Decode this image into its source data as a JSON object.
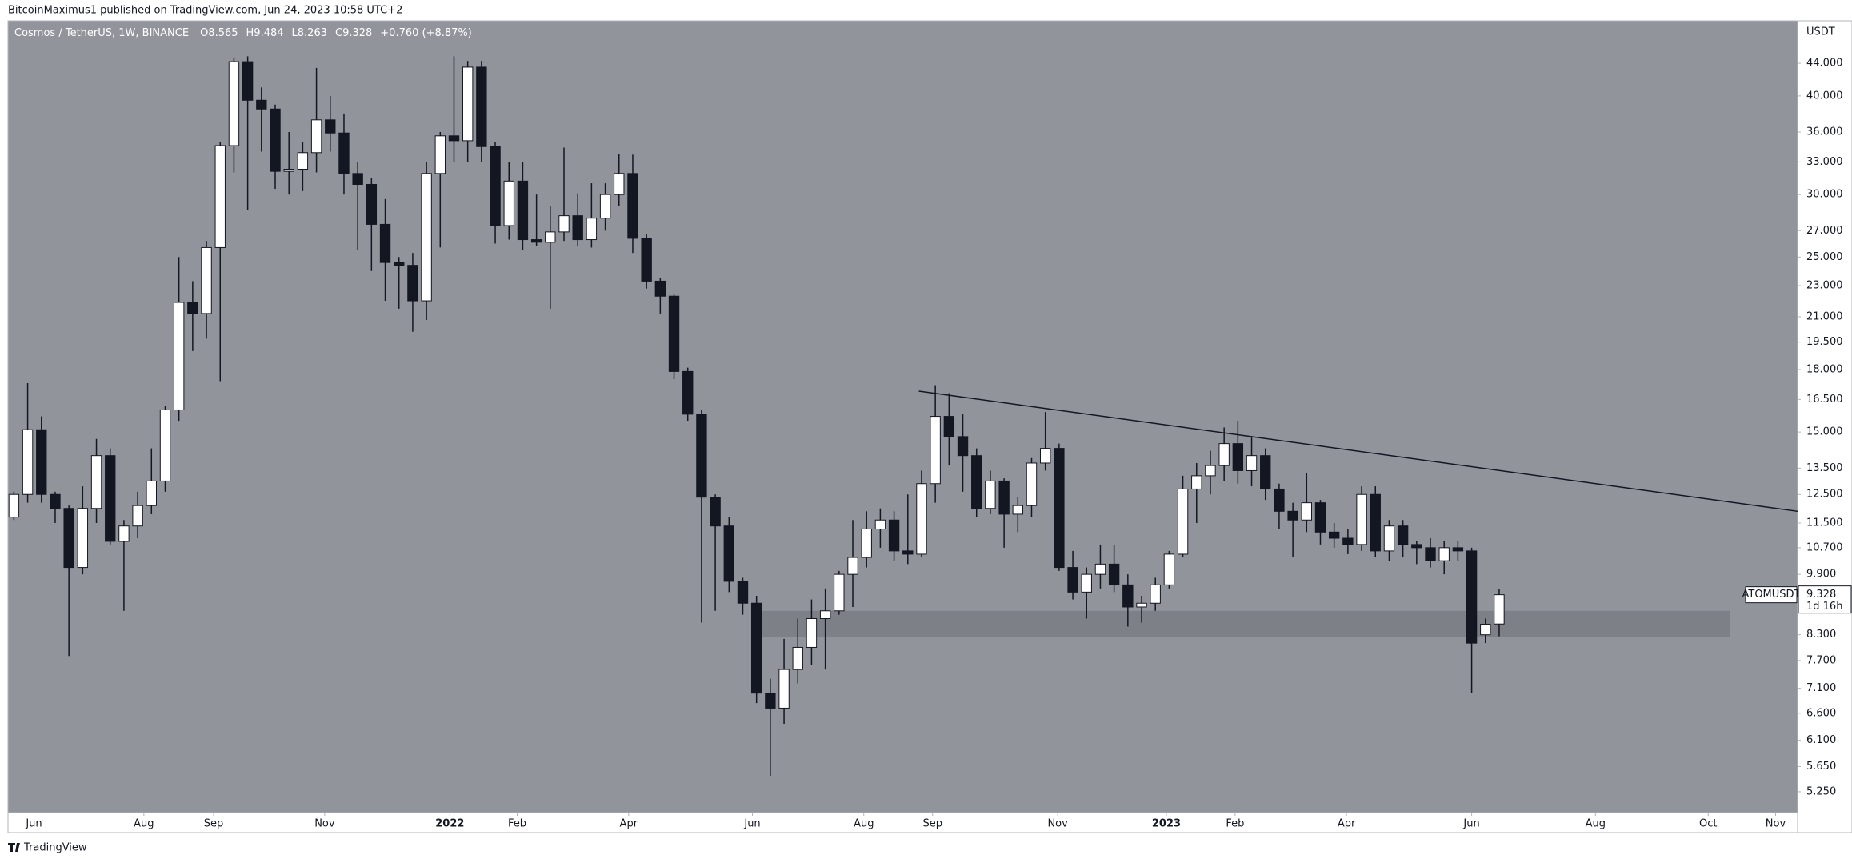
{
  "header": "BitcoinMaximus1 published on TradingView.com, Jun 24, 2023 10:58 UTC+2",
  "footer": "TradingView",
  "chart_data": {
    "type": "candlestick",
    "symbol_legend": "Cosmos / TetherUS, 1W, BINANCE",
    "legend_labels": [
      "O",
      "H",
      "L",
      "C"
    ],
    "change_label": "+0.760 (+8.87%)",
    "currency": "USDT",
    "symbol_tag": "ATOMUSDT",
    "countdown": "1d 16h",
    "log_scale": true,
    "grid": false,
    "up_color": "#ffffff",
    "down_color": "#131722",
    "background": "#92949c",
    "open": [
      11.7,
      12.5,
      15.1,
      12.5,
      12.0,
      10.1,
      12.0,
      14.0,
      10.9,
      11.4,
      12.1,
      13.0,
      16.0,
      21.9,
      21.2,
      25.7,
      34.6,
      44.2,
      39.5,
      38.5,
      32.1,
      32.3,
      33.9,
      37.3,
      35.9,
      31.9,
      30.9,
      27.5,
      24.6,
      24.4,
      22.0,
      31.9,
      35.6,
      35.1,
      43.5,
      34.5,
      27.4,
      31.2,
      26.3,
      26.1,
      26.9,
      28.2,
      26.3,
      28.0,
      30.0,
      31.9,
      26.4,
      23.3,
      22.3,
      17.9,
      15.8,
      12.4,
      11.4,
      9.7,
      9.1,
      7.0,
      6.7,
      7.5,
      8.0,
      8.7,
      8.9,
      9.9,
      10.4,
      11.3,
      11.6,
      10.6,
      10.5,
      12.9,
      15.7,
      14.8,
      14.0,
      12.0,
      13.0,
      11.8,
      12.1,
      13.7,
      14.3,
      10.1,
      9.4,
      9.9,
      10.2,
      9.6,
      9.0,
      9.1,
      9.6,
      10.5,
      12.7,
      13.2,
      13.6,
      14.5,
      13.4,
      14.0,
      12.7,
      11.9,
      11.6,
      12.2,
      11.2,
      11.0,
      10.8,
      12.5,
      10.6,
      11.4,
      10.8,
      10.7,
      10.3,
      10.7,
      10.6,
      8.3,
      8.565
    ],
    "high": [
      12.6,
      17.3,
      15.7,
      12.6,
      12.1,
      12.8,
      14.7,
      14.3,
      11.6,
      12.6,
      14.3,
      16.2,
      25.0,
      23.3,
      26.2,
      35.0,
      44.7,
      44.9,
      41.0,
      39.0,
      36.0,
      35.0,
      43.4,
      40.0,
      38.0,
      33.0,
      31.5,
      29.6,
      25.0,
      25.3,
      33.0,
      36.0,
      44.9,
      44.3,
      44.3,
      35.0,
      33.0,
      33.0,
      30.0,
      29.0,
      34.4,
      30.1,
      31.0,
      31.0,
      33.8,
      33.7,
      26.7,
      23.5,
      22.4,
      18.1,
      16.0,
      12.5,
      11.7,
      9.8,
      9.3,
      7.3,
      8.2,
      8.7,
      9.2,
      9.5,
      10.0,
      11.6,
      11.9,
      12.0,
      11.9,
      12.5,
      13.4,
      17.2,
      16.8,
      15.8,
      14.3,
      13.4,
      13.1,
      12.4,
      13.9,
      15.9,
      14.5,
      10.6,
      10.1,
      10.8,
      10.8,
      9.9,
      9.3,
      9.8,
      10.6,
      13.2,
      13.7,
      14.2,
      15.2,
      15.5,
      14.8,
      14.3,
      12.9,
      12.2,
      13.3,
      12.3,
      11.5,
      11.3,
      12.8,
      12.8,
      11.6,
      11.6,
      10.9,
      11.0,
      10.9,
      10.9,
      10.7,
      8.7,
      9.484
    ],
    "low": [
      11.6,
      12.2,
      12.2,
      11.5,
      7.8,
      9.9,
      11.5,
      10.8,
      8.9,
      11.0,
      11.8,
      12.6,
      15.5,
      19.0,
      19.7,
      17.4,
      32.0,
      28.7,
      34.0,
      30.5,
      30.0,
      30.3,
      32.0,
      34.0,
      30.0,
      25.5,
      24.0,
      22.0,
      21.5,
      20.1,
      20.8,
      25.7,
      33.0,
      33.0,
      33.0,
      26.0,
      26.3,
      25.5,
      25.8,
      21.5,
      26.2,
      25.8,
      25.7,
      27.0,
      29.0,
      25.3,
      22.8,
      21.2,
      17.5,
      15.5,
      8.6,
      8.9,
      9.4,
      8.8,
      6.8,
      5.5,
      6.4,
      7.2,
      7.6,
      7.5,
      8.8,
      9.0,
      10.1,
      10.7,
      10.3,
      10.2,
      10.4,
      12.2,
      13.6,
      12.6,
      11.7,
      11.8,
      10.7,
      11.2,
      11.7,
      13.4,
      10.0,
      9.2,
      8.7,
      9.5,
      9.4,
      8.5,
      8.6,
      8.9,
      9.5,
      10.4,
      11.5,
      12.5,
      13.0,
      12.9,
      12.8,
      12.3,
      11.3,
      10.4,
      11.2,
      10.8,
      10.7,
      10.5,
      10.6,
      10.4,
      10.3,
      10.4,
      10.2,
      10.1,
      9.9,
      10.3,
      7.0,
      8.1,
      8.263
    ],
    "close": [
      12.5,
      15.1,
      12.5,
      12.0,
      10.1,
      12.0,
      14.0,
      10.9,
      11.4,
      12.1,
      13.0,
      16.0,
      21.9,
      21.2,
      25.7,
      34.6,
      44.2,
      39.5,
      38.5,
      32.1,
      32.3,
      33.9,
      37.3,
      35.9,
      31.9,
      30.9,
      27.5,
      24.6,
      24.4,
      22.0,
      31.9,
      35.6,
      35.1,
      43.5,
      34.5,
      27.4,
      31.2,
      26.3,
      26.1,
      26.9,
      28.2,
      26.3,
      28.0,
      30.0,
      31.9,
      26.4,
      23.3,
      22.3,
      17.9,
      15.8,
      12.4,
      11.4,
      9.7,
      9.1,
      7.0,
      6.7,
      7.5,
      8.0,
      8.7,
      8.9,
      9.9,
      10.4,
      11.3,
      11.6,
      10.6,
      10.5,
      12.9,
      15.7,
      14.8,
      14.0,
      12.0,
      13.0,
      11.8,
      12.1,
      13.7,
      14.3,
      10.1,
      9.4,
      9.9,
      10.2,
      9.6,
      9.0,
      9.1,
      9.6,
      10.5,
      12.7,
      13.2,
      13.6,
      14.5,
      13.4,
      14.0,
      12.7,
      11.9,
      11.6,
      12.2,
      11.2,
      11.0,
      10.8,
      12.5,
      10.6,
      11.4,
      10.8,
      10.7,
      10.3,
      10.7,
      10.6,
      8.1,
      8.56,
      9.328
    ],
    "zone": {
      "x": [
        54.2,
        124.8
      ],
      "y": [
        8.25,
        8.9
      ],
      "color": "#7e8088"
    },
    "trendline": {
      "x": [
        65.8,
        129.7
      ],
      "y": [
        16.9,
        11.9
      ],
      "color": "#131722"
    },
    "xlim": [
      -0.43,
      129.7
    ],
    "ylim": [
      4.94,
      49.8
    ],
    "xticks": [
      {
        "value": 1.46,
        "label": "Jun"
      },
      {
        "value": 9.45,
        "label": "Aug"
      },
      {
        "value": 14.52,
        "label": "Sep"
      },
      {
        "value": 22.6,
        "label": "Nov"
      },
      {
        "value": 31.7,
        "label": "2022"
      },
      {
        "value": 36.6,
        "label": "Feb"
      },
      {
        "value": 44.7,
        "label": "Apr"
      },
      {
        "value": 53.7,
        "label": "Jun"
      },
      {
        "value": 61.8,
        "label": "Aug"
      },
      {
        "value": 66.8,
        "label": "Sep"
      },
      {
        "value": 75.9,
        "label": "Nov"
      },
      {
        "value": 83.8,
        "label": "2023"
      },
      {
        "value": 88.8,
        "label": "Feb"
      },
      {
        "value": 96.9,
        "label": "Apr"
      },
      {
        "value": 106.0,
        "label": "Jun"
      },
      {
        "value": 115.0,
        "label": "Aug"
      },
      {
        "value": 123.2,
        "label": "Oct"
      },
      {
        "value": 128.1,
        "label": "Nov"
      }
    ],
    "yticks": [
      {
        "value": 44,
        "label": "44.000"
      },
      {
        "value": 40,
        "label": "40.000"
      },
      {
        "value": 36,
        "label": "36.000"
      },
      {
        "value": 33,
        "label": "33.000"
      },
      {
        "value": 30,
        "label": "30.000"
      },
      {
        "value": 27,
        "label": "27.000"
      },
      {
        "value": 25,
        "label": "25.000"
      },
      {
        "value": 23,
        "label": "23.000"
      },
      {
        "value": 21,
        "label": "21.000"
      },
      {
        "value": 19.5,
        "label": "19.500"
      },
      {
        "value": 18,
        "label": "18.000"
      },
      {
        "value": 16.5,
        "label": "16.500"
      },
      {
        "value": 15,
        "label": "15.000"
      },
      {
        "value": 13.5,
        "label": "13.500"
      },
      {
        "value": 12.5,
        "label": "12.500"
      },
      {
        "value": 11.5,
        "label": "11.500"
      },
      {
        "value": 10.7,
        "label": "10.700"
      },
      {
        "value": 9.9,
        "label": "9.900"
      },
      {
        "value": 8.3,
        "label": "8.300"
      },
      {
        "value": 7.7,
        "label": "7.700"
      },
      {
        "value": 7.1,
        "label": "7.100"
      },
      {
        "value": 6.6,
        "label": "6.600"
      },
      {
        "value": 6.1,
        "label": "6.100"
      },
      {
        "value": 5.65,
        "label": "5.650"
      },
      {
        "value": 5.25,
        "label": "5.250"
      }
    ]
  }
}
